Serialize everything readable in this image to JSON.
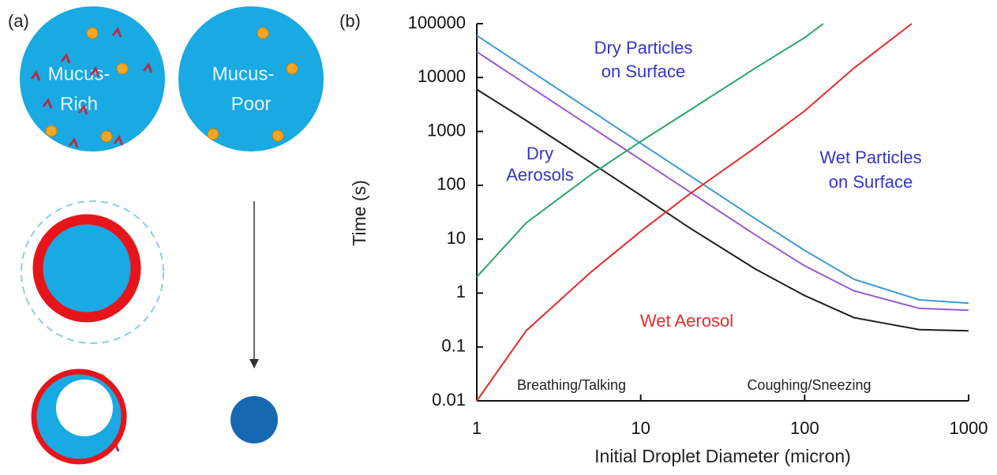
{
  "panel_a": {
    "label": "(a)",
    "rich_lines": [
      "Mucus-",
      "Rich"
    ],
    "poor_lines": [
      "Mucus-",
      "Poor"
    ]
  },
  "chart_data": {
    "type": "line",
    "panel_label": "(b)",
    "x_label": "Initial Droplet Diameter (micron)",
    "y_label": "Time (s)",
    "log_x": true,
    "log_y": true,
    "xlim": [
      1,
      1000
    ],
    "xticks": [
      1,
      10,
      100,
      1000
    ],
    "ylim": [
      0.01,
      100000
    ],
    "yticks": [
      0.01,
      0.1,
      1,
      10,
      100,
      1000,
      10000,
      100000
    ],
    "series": [
      {
        "color": "#1f1f1f",
        "x": [
          1,
          2,
          5,
          10,
          20,
          50,
          100,
          200,
          500,
          1000
        ],
        "values": [
          6000,
          1600,
          260,
          65,
          16,
          2.8,
          0.9,
          0.35,
          0.21,
          0.2
        ]
      },
      {
        "color": "#9b59d0",
        "x": [
          1,
          2,
          5,
          10,
          20,
          50,
          100,
          200,
          500,
          1000
        ],
        "values": [
          30000,
          7500,
          1200,
          300,
          75,
          12,
          3.2,
          1.1,
          0.52,
          0.48
        ]
      },
      {
        "color": "#3b9ad9",
        "x": [
          1,
          2,
          5,
          10,
          20,
          50,
          100,
          200,
          500,
          1000
        ],
        "values": [
          60000,
          15000,
          2400,
          600,
          150,
          24,
          6.2,
          1.8,
          0.75,
          0.65
        ]
      },
      {
        "color": "#2aa56b",
        "x": [
          1,
          2,
          5,
          10,
          20,
          50,
          100,
          130
        ],
        "values": [
          2,
          20,
          160,
          650,
          2500,
          15000,
          55000,
          100000
        ]
      },
      {
        "color": "#e52b2b",
        "x": [
          1,
          2,
          5,
          10,
          20,
          50,
          100,
          200,
          450
        ],
        "values": [
          0.01,
          0.2,
          2.5,
          14,
          70,
          500,
          2400,
          15000,
          100000
        ]
      }
    ],
    "annotations": [
      {
        "text": "Dry Particles",
        "color": "#3535c8"
      },
      {
        "text": "on Surface",
        "color": "#3535c8"
      },
      {
        "text": "Dry",
        "color": "#3535c8"
      },
      {
        "text": "Aerosols",
        "color": "#3535c8"
      },
      {
        "text": "Wet Particles",
        "color": "#3535c8"
      },
      {
        "text": "on Surface",
        "color": "#3535c8"
      },
      {
        "text": "Wet Aerosol",
        "color": "#e52b2b"
      },
      {
        "text": "Breathing/Talking",
        "color": "#1f1f1f"
      },
      {
        "text": "Coughing/Sneezing",
        "color": "#1f1f1f"
      }
    ]
  }
}
